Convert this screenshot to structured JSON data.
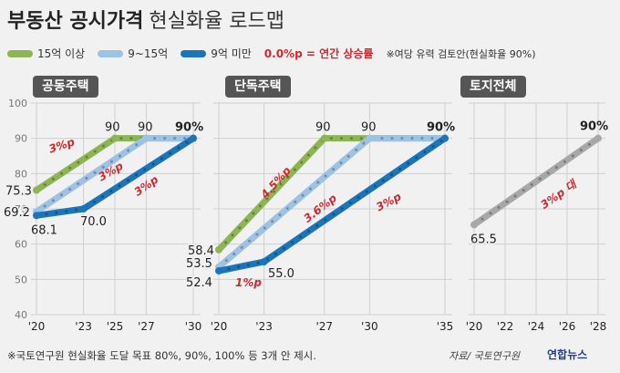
{
  "header": {
    "title": "부동산 공시가격",
    "subtitle": "현실화율 로드맵"
  },
  "legend": {
    "items": [
      {
        "label": "15억 이상",
        "color": "#8db554"
      },
      {
        "label": "9~15억",
        "color": "#9ec2e4"
      },
      {
        "label": "9억 미만",
        "color": "#1c74bb"
      }
    ],
    "rate_note": "0.0%p = 연간 상승률",
    "review_note": "※여당 유력 검토안(현실화율 90%)"
  },
  "chart_data": [
    {
      "type": "line",
      "panel": "공동주택",
      "ylim": [
        40,
        100
      ],
      "y_ticks": [
        "100",
        "90",
        "80",
        "70",
        "60",
        "50",
        "40"
      ],
      "x_tick_labels": [
        "'20",
        "'23",
        "'25",
        "'27",
        "'30"
      ],
      "series": [
        {
          "name": "15억 이상",
          "x": [
            2020,
            2025,
            2030
          ],
          "y": [
            75.3,
            90,
            90
          ]
        },
        {
          "name": "9~15억",
          "x": [
            2020,
            2027,
            2030
          ],
          "y": [
            69.2,
            90,
            90
          ]
        },
        {
          "name": "9억 미만",
          "x": [
            2020,
            2023,
            2030
          ],
          "y": [
            68.1,
            70.0,
            90
          ]
        }
      ],
      "point_labels": [
        "75.3",
        "69.2",
        "68.1",
        "70.0",
        "90",
        "90",
        "90%"
      ],
      "rate_labels": [
        "3%p",
        "3%p",
        "3%p"
      ]
    },
    {
      "type": "line",
      "panel": "단독주택",
      "ylim": [
        40,
        100
      ],
      "x_tick_labels": [
        "'20",
        "'23",
        "'27",
        "'30",
        "'35"
      ],
      "series": [
        {
          "name": "15억 이상",
          "x": [
            2020,
            2027,
            2035
          ],
          "y": [
            58.4,
            90,
            90
          ]
        },
        {
          "name": "9~15억",
          "x": [
            2020,
            2030,
            2035
          ],
          "y": [
            53.5,
            90,
            90
          ]
        },
        {
          "name": "9억 미만",
          "x": [
            2020,
            2023,
            2035
          ],
          "y": [
            52.4,
            55.0,
            90
          ]
        }
      ],
      "point_labels": [
        "58.4",
        "53.5",
        "52.4",
        "55.0",
        "90",
        "90",
        "90%"
      ],
      "rate_labels": [
        "4.5%p",
        "3.6%p",
        "3%p",
        "1%p"
      ]
    },
    {
      "type": "line",
      "panel": "토지전체",
      "ylim": [
        40,
        100
      ],
      "x_tick_labels": [
        "'20",
        "'22",
        "'24",
        "'26",
        "'28"
      ],
      "series": [
        {
          "name": "토지전체",
          "color": "#a8a8a8",
          "x": [
            2020,
            2028
          ],
          "y": [
            65.5,
            90
          ]
        }
      ],
      "point_labels": [
        "65.5",
        "90%"
      ],
      "rate_labels": [
        "3%p 대"
      ]
    }
  ],
  "footer": {
    "note": "※국토연구원 현실화율 도달 목표 80%, 90%, 100% 등 3개 안 제시.",
    "source": "자료/ 국토연구원",
    "logo": "연합뉴스"
  }
}
